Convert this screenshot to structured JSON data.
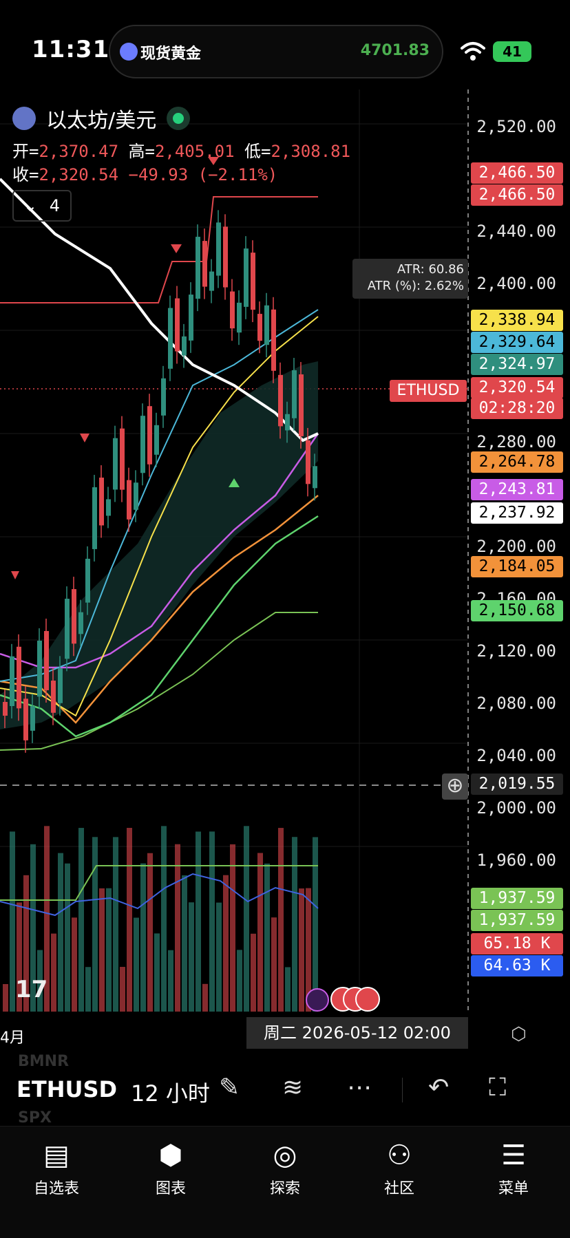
{
  "status_bar": {
    "time": "11:31",
    "ticker_name": "现货黄金",
    "ticker_price": "4701.83",
    "battery": "41"
  },
  "header": {
    "symbol_name": "以太坊/美元",
    "open_label": "开=",
    "open": "2,370.47",
    "high_label": "高=",
    "high": "2,405.01",
    "low_label": "低=",
    "low": "2,308.81",
    "close_label": "收=",
    "close": "2,320.54",
    "change": "−49.93 (−2.11%)",
    "indicator_count": "4"
  },
  "atr": {
    "line1": "ATR: 60.86",
    "line2": "ATR (%): 2.62%"
  },
  "price_axis": [
    "2,520.00",
    "2,440.00",
    "2,400.00",
    "2,280.00",
    "2,200.00",
    "2,160.00",
    "2,120.00",
    "2,080.00",
    "2,040.00",
    "2,000.00",
    "1,960.00"
  ],
  "price_tags": [
    {
      "text": "2,466.50",
      "bg": "#e0474c",
      "fg": "#ffffff"
    },
    {
      "text": "2,466.50",
      "bg": "#e0474c",
      "fg": "#ffffff"
    },
    {
      "text": "2,338.94",
      "bg": "#f7e14b",
      "fg": "#000000"
    },
    {
      "text": "2,329.64",
      "bg": "#4cb8d9",
      "fg": "#000000"
    },
    {
      "text": "2,324.97",
      "bg": "#2f8f7e",
      "fg": "#ffffff"
    },
    {
      "text": "2,320.54",
      "bg": "#e0474c",
      "fg": "#ffffff"
    },
    {
      "text": "02:28:20",
      "bg": "#e0474c",
      "fg": "#ffffff"
    },
    {
      "text": "2,264.78",
      "bg": "#f2923a",
      "fg": "#000000"
    },
    {
      "text": "2,243.81",
      "bg": "#c85ce6",
      "fg": "#ffffff"
    },
    {
      "text": "2,237.92",
      "bg": "#ffffff",
      "fg": "#000000"
    },
    {
      "text": "2,184.05",
      "bg": "#f2923a",
      "fg": "#000000"
    },
    {
      "text": "2,150.68",
      "bg": "#5ed36d",
      "fg": "#000000"
    },
    {
      "text": "2,019.55",
      "bg": "#222222",
      "fg": "#ffffff"
    },
    {
      "text": "1,937.59",
      "bg": "#7ac355",
      "fg": "#ffffff"
    },
    {
      "text": "1,937.59",
      "bg": "#7ac355",
      "fg": "#ffffff"
    },
    {
      "text": "65.18 K",
      "bg": "#e0474c",
      "fg": "#ffffff"
    },
    {
      "text": "64.63 K",
      "bg": "#2b5cf0",
      "fg": "#ffffff"
    }
  ],
  "eth_tag": "ETHUSD",
  "tv_logo": "17",
  "crosshair_date": "周二 2026-05-12   02:00",
  "month_label": "4月",
  "colors": {
    "up": "#2f8f7e",
    "down": "#e0474c",
    "bg": "#000000"
  },
  "toolbar": {
    "symbol": "ETHUSD",
    "interval": "12 小时",
    "ghost_top": "BMNR",
    "ghost_bottom": "SPX"
  },
  "nav": [
    {
      "label": "自选表",
      "icon": "watchlist-icon"
    },
    {
      "label": "图表",
      "icon": "chart-icon"
    },
    {
      "label": "探索",
      "icon": "compass-icon"
    },
    {
      "label": "社区",
      "icon": "community-icon"
    },
    {
      "label": "菜单",
      "icon": "menu-icon"
    }
  ]
}
